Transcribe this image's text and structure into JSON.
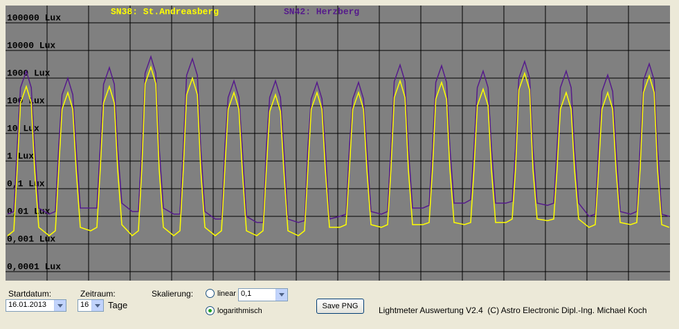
{
  "chart_data": {
    "type": "line",
    "series": [
      {
        "name": "SN38: St.Andreasberg",
        "color": "#ffff00",
        "values": [
          0.002,
          0.003,
          0.5,
          125,
          500,
          125,
          0.5,
          0.004,
          0.002,
          0.003,
          0.5,
          75,
          300,
          75,
          0.5,
          0.004,
          0.003,
          0.004,
          0.5,
          125,
          500,
          125,
          0.5,
          0.005,
          0.002,
          0.003,
          0.5,
          625,
          2500,
          625,
          0.5,
          0.004,
          0.002,
          0.003,
          0.5,
          250,
          1000,
          250,
          0.5,
          0.004,
          0.002,
          0.003,
          0.5,
          75,
          300,
          75,
          0.5,
          0.003,
          0.002,
          0.003,
          0.5,
          62,
          250,
          62,
          0.5,
          0.003,
          0.002,
          0.003,
          0.5,
          75,
          300,
          75,
          0.5,
          0.004,
          0.004,
          0.005,
          0.5,
          75,
          300,
          75,
          0.5,
          0.005,
          0.004,
          0.005,
          0.5,
          200,
          800,
          200,
          0.5,
          0.005,
          0.005,
          0.006,
          0.5,
          175,
          700,
          175,
          0.5,
          0.006,
          0.005,
          0.006,
          0.5,
          100,
          400,
          100,
          0.5,
          0.006,
          0.006,
          0.008,
          0.5,
          375,
          1500,
          375,
          0.5,
          0.008,
          0.007,
          0.008,
          0.5,
          75,
          300,
          75,
          0.5,
          0.008,
          0.004,
          0.005,
          0.5,
          75,
          300,
          75,
          0.5,
          0.006,
          0.005,
          0.006,
          0.5,
          300,
          1200,
          300,
          0.5,
          0.005,
          0.004
        ]
      },
      {
        "name": "SN42: Herzberg",
        "color": "#551a8b",
        "values": [
          0.012,
          0.015,
          3,
          450,
          1800,
          450,
          3,
          0.02,
          0.012,
          0.015,
          3,
          250,
          1000,
          250,
          3,
          0.02,
          0.02,
          0.02,
          3,
          600,
          2400,
          600,
          3,
          0.03,
          0.015,
          0.015,
          3,
          1500,
          6000,
          1500,
          3,
          0.02,
          0.012,
          0.012,
          3,
          1250,
          5000,
          1250,
          3,
          0.015,
          0.008,
          0.008,
          3,
          200,
          800,
          200,
          3,
          0.01,
          0.006,
          0.006,
          3,
          200,
          800,
          200,
          3,
          0.008,
          0.006,
          0.007,
          3,
          175,
          700,
          175,
          3,
          0.008,
          0.01,
          0.012,
          3,
          175,
          700,
          175,
          3,
          0.015,
          0.012,
          0.015,
          3,
          750,
          3000,
          750,
          3,
          0.02,
          0.02,
          0.025,
          3,
          700,
          2800,
          700,
          3,
          0.03,
          0.03,
          0.04,
          3,
          450,
          1800,
          450,
          3,
          0.03,
          0.03,
          0.035,
          3,
          1000,
          4000,
          1000,
          3,
          0.03,
          0.025,
          0.03,
          3,
          450,
          1800,
          450,
          3,
          0.03,
          0.01,
          0.012,
          3,
          325,
          1300,
          325,
          3,
          0.015,
          0.012,
          0.015,
          3,
          825,
          3300,
          825,
          3,
          0.012,
          0.01
        ]
      }
    ],
    "x": [
      0.05,
      0.2,
      0.28,
      0.36,
      0.5,
      0.62,
      0.7,
      0.8,
      1.05,
      1.2,
      1.28,
      1.36,
      1.5,
      1.62,
      1.7,
      1.8,
      2.05,
      2.2,
      2.28,
      2.36,
      2.5,
      2.62,
      2.7,
      2.8,
      3.05,
      3.2,
      3.28,
      3.36,
      3.5,
      3.62,
      3.7,
      3.8,
      4.05,
      4.2,
      4.28,
      4.36,
      4.5,
      4.62,
      4.7,
      4.8,
      5.05,
      5.2,
      5.28,
      5.36,
      5.5,
      5.62,
      5.7,
      5.8,
      6.05,
      6.2,
      6.28,
      6.36,
      6.5,
      6.62,
      6.7,
      6.8,
      7.05,
      7.2,
      7.28,
      7.36,
      7.5,
      7.62,
      7.7,
      7.8,
      8.05,
      8.2,
      8.28,
      8.36,
      8.5,
      8.62,
      8.7,
      8.8,
      9.05,
      9.2,
      9.28,
      9.36,
      9.5,
      9.62,
      9.7,
      9.8,
      10.05,
      10.2,
      10.28,
      10.36,
      10.5,
      10.62,
      10.7,
      10.8,
      11.05,
      11.2,
      11.28,
      11.36,
      11.5,
      11.62,
      11.7,
      11.8,
      12.05,
      12.2,
      12.28,
      12.36,
      12.5,
      12.62,
      12.7,
      12.8,
      13.05,
      13.2,
      13.28,
      13.36,
      13.5,
      13.62,
      13.7,
      13.8,
      14.05,
      14.2,
      14.28,
      14.36,
      14.5,
      14.62,
      14.7,
      14.8,
      15.05,
      15.2,
      15.28,
      15.36,
      15.5,
      15.62,
      15.7,
      15.8,
      15.98
    ],
    "xlim": [
      0,
      16
    ],
    "ylim": [
      4.73e-05,
      421700
    ],
    "log_scale": true,
    "grid": true,
    "yticks": [
      {
        "value": 100000,
        "label": "100000 Lux"
      },
      {
        "value": 10000,
        "label": "10000 Lux"
      },
      {
        "value": 1000,
        "label": "1000 Lux"
      },
      {
        "value": 100,
        "label": "100 Lux"
      },
      {
        "value": 10,
        "label": "10 Lux"
      },
      {
        "value": 1,
        "label": "1 Lux"
      },
      {
        "value": 0.1,
        "label": "0,1 Lux"
      },
      {
        "value": 0.01,
        "label": "0,01 Lux"
      },
      {
        "value": 0.001,
        "label": "0,001 Lux"
      },
      {
        "value": 0.0001,
        "label": "0,0001 Lux"
      }
    ]
  },
  "controls": {
    "start_label": "Startdatum:",
    "start_value": "16.01.2013",
    "period_label": "Zeitraum:",
    "period_value": "16",
    "period_unit": "Tage",
    "scale_label": "Skalierung:",
    "linear_label": "linear",
    "linear_factor": "0,1",
    "log_label": "logarithmisch",
    "save_button": "Save PNG"
  },
  "footer": "Lightmeter Auswertung V2.4  (C) Astro Electronic Dipl.-Ing. Michael Koch"
}
